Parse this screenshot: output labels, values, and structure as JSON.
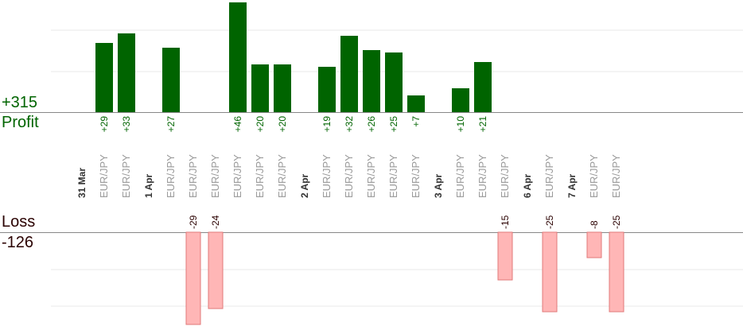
{
  "summary": {
    "profit_total": "+315",
    "profit_label": "Profit",
    "loss_label": "Loss",
    "loss_total": "-126"
  },
  "colors": {
    "profit": "#006400",
    "loss": "#ffb6b6",
    "loss_stroke": "#e07a7a",
    "axis": "#888888",
    "grid": "#e8e8e8"
  },
  "chart_data": {
    "type": "bar",
    "title": "",
    "ylim_profit": [
      0,
      50
    ],
    "ylim_loss": [
      -35,
      0
    ],
    "grid": true,
    "categories": [
      {
        "label": "31 Mar",
        "kind": "date"
      },
      {
        "label": "EUR/JPY",
        "kind": "trade",
        "value": 29
      },
      {
        "label": "EUR/JPY",
        "kind": "trade",
        "value": 33
      },
      {
        "label": "1 Apr",
        "kind": "date"
      },
      {
        "label": "EUR/JPY",
        "kind": "trade",
        "value": 27
      },
      {
        "label": "EUR/JPY",
        "kind": "trade",
        "value": -29
      },
      {
        "label": "EUR/JPY",
        "kind": "trade",
        "value": -24
      },
      {
        "label": "EUR/JPY",
        "kind": "trade",
        "value": 46
      },
      {
        "label": "EUR/JPY",
        "kind": "trade",
        "value": 20
      },
      {
        "label": "EUR/JPY",
        "kind": "trade",
        "value": 20
      },
      {
        "label": "2 Apr",
        "kind": "date"
      },
      {
        "label": "EUR/JPY",
        "kind": "trade",
        "value": 19
      },
      {
        "label": "EUR/JPY",
        "kind": "trade",
        "value": 32
      },
      {
        "label": "EUR/JPY",
        "kind": "trade",
        "value": 26
      },
      {
        "label": "EUR/JPY",
        "kind": "trade",
        "value": 25
      },
      {
        "label": "EUR/JPY",
        "kind": "trade",
        "value": 7
      },
      {
        "label": "3 Apr",
        "kind": "date"
      },
      {
        "label": "EUR/JPY",
        "kind": "trade",
        "value": 10
      },
      {
        "label": "EUR/JPY",
        "kind": "trade",
        "value": 21
      },
      {
        "label": "EUR/JPY",
        "kind": "trade",
        "value": -15
      },
      {
        "label": "6 Apr",
        "kind": "date"
      },
      {
        "label": "EUR/JPY",
        "kind": "trade",
        "value": -25
      },
      {
        "label": "7 Apr",
        "kind": "date"
      },
      {
        "label": "EUR/JPY",
        "kind": "trade",
        "value": -8
      },
      {
        "label": "EUR/JPY",
        "kind": "trade",
        "value": -25
      }
    ]
  }
}
